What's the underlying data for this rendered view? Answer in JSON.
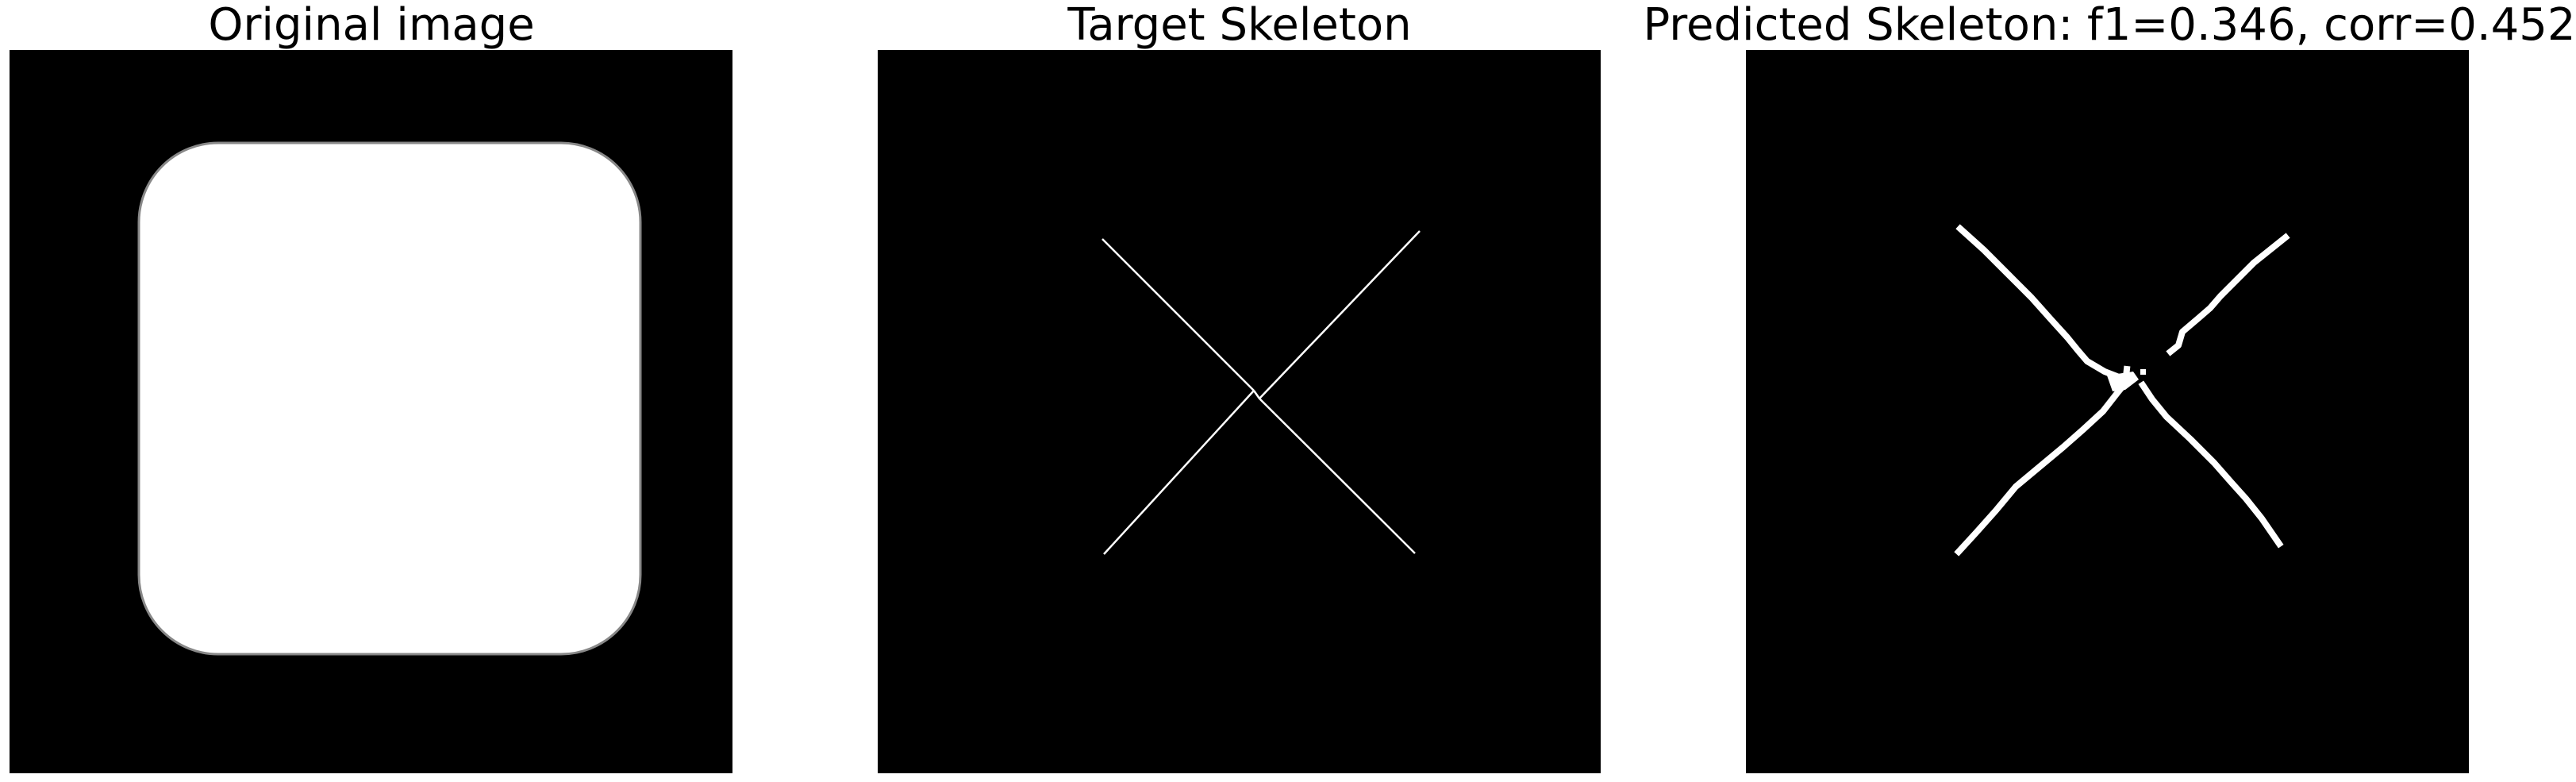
{
  "panels": [
    {
      "title": "Original image"
    },
    {
      "title": "Target Skeleton"
    },
    {
      "title": "Predicted Skeleton: f1=0.346, corr=0.452"
    }
  ],
  "colors": {
    "background": "#000000",
    "foreground": "#ffffff",
    "page": "#ffffff"
  }
}
